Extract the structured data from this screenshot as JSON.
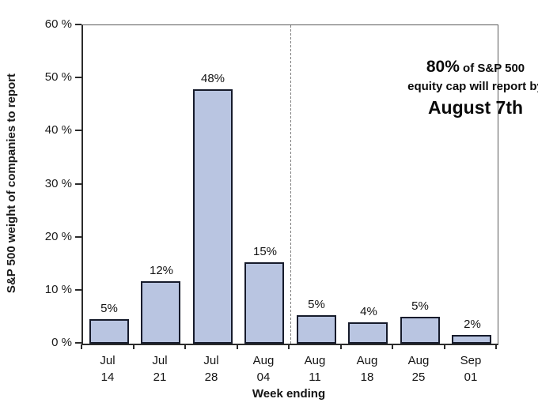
{
  "chart_data": {
    "type": "bar",
    "title": "",
    "xlabel": "Week ending",
    "ylabel": "S&P 500 weight of companies to report",
    "categories": [
      [
        "Jul",
        "14"
      ],
      [
        "Jul",
        "21"
      ],
      [
        "Jul",
        "28"
      ],
      [
        "Aug",
        "04"
      ],
      [
        "Aug",
        "11"
      ],
      [
        "Aug",
        "18"
      ],
      [
        "Aug",
        "25"
      ],
      [
        "Sep",
        "01"
      ]
    ],
    "values": [
      5,
      12,
      48,
      15,
      5,
      4,
      5,
      2
    ],
    "value_labels": [
      "5%",
      "12%",
      "48%",
      "15%",
      "5%",
      "4%",
      "5%",
      "2%"
    ],
    "bar_heights_pct": [
      4.6,
      11.8,
      48.0,
      15.4,
      5.3,
      4.0,
      5.0,
      1.6
    ],
    "ylim": [
      0,
      60
    ],
    "yticks": [
      0,
      10,
      20,
      30,
      40,
      50,
      60
    ],
    "ytick_labels": [
      "0 %",
      "10 %",
      "20 %",
      "30 %",
      "40 %",
      "50 %",
      "60 %"
    ],
    "grid": false,
    "legend": null,
    "separator_after_index": 3,
    "separator_style": "dashed",
    "annotation": {
      "pct": "80%",
      "line1_rest": " of S&P 500",
      "line2": "equity cap will report by",
      "line3": "August 7th"
    },
    "colors": {
      "bar_fill": "#b9c5e1",
      "bar_border": "#161b2b",
      "axis": "#2b2b2b",
      "box": "#5a5a5a",
      "dashed_line": "#7e7e7e",
      "text": "#141414",
      "background": "#ffffff"
    }
  }
}
